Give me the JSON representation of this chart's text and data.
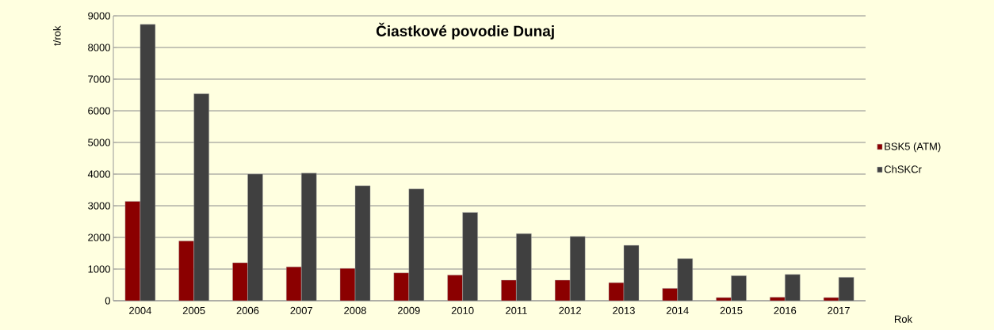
{
  "chart_data": {
    "type": "bar",
    "title": "Čiastkové povodie Dunaj",
    "xlabel": "Rok",
    "ylabel": "t/rok",
    "categories": [
      "2004",
      "2005",
      "2006",
      "2007",
      "2008",
      "2009",
      "2010",
      "2011",
      "2012",
      "2013",
      "2014",
      "2015",
      "2016",
      "2017"
    ],
    "series": [
      {
        "name": "BSK5 (ATM)",
        "color": "#8b0000",
        "values": [
          3140,
          1890,
          1200,
          1070,
          1020,
          880,
          810,
          650,
          650,
          570,
          390,
          100,
          110,
          100
        ]
      },
      {
        "name": "ChSKCr",
        "color": "#404040",
        "values": [
          8730,
          6540,
          4000,
          4030,
          3630,
          3530,
          2790,
          2120,
          2030,
          1750,
          1330,
          790,
          830,
          740
        ]
      }
    ],
    "ylim": [
      0,
      9000
    ],
    "yticks": [
      0,
      1000,
      2000,
      3000,
      4000,
      5000,
      6000,
      7000,
      8000,
      9000
    ],
    "grid": "y",
    "legend": "right"
  }
}
